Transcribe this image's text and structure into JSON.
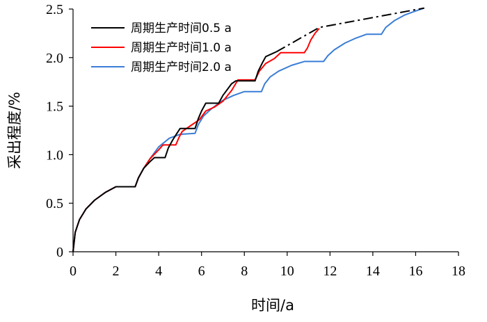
{
  "chart_data": {
    "type": "line",
    "xlabel": "时间/a",
    "ylabel": "采出程度/%",
    "xlim": [
      0,
      18
    ],
    "ylim": [
      0,
      2.5
    ],
    "x_ticks": [
      "0",
      "2",
      "4",
      "6",
      "8",
      "10",
      "12",
      "14",
      "16",
      "18"
    ],
    "y_ticks": [
      "0",
      "0.5",
      "1.0",
      "1.5",
      "2.0",
      "2.5"
    ],
    "grid": false,
    "legend_position": "top-left",
    "series": [
      {
        "name": "周期生产时间0.5 a",
        "color": "#000000",
        "points": [
          [
            0,
            0
          ],
          [
            0.1,
            0.2
          ],
          [
            0.3,
            0.33
          ],
          [
            0.6,
            0.44
          ],
          [
            1,
            0.53
          ],
          [
            1.5,
            0.61
          ],
          [
            2,
            0.67
          ],
          [
            2.9,
            0.67
          ],
          [
            3.05,
            0.76
          ],
          [
            3.3,
            0.86
          ],
          [
            3.6,
            0.93
          ],
          [
            3.8,
            0.97
          ],
          [
            4.3,
            0.97
          ],
          [
            4.45,
            1.07
          ],
          [
            4.65,
            1.15
          ],
          [
            4.85,
            1.22
          ],
          [
            5.0,
            1.27
          ],
          [
            5.7,
            1.27
          ],
          [
            5.85,
            1.37
          ],
          [
            6.0,
            1.45
          ],
          [
            6.2,
            1.53
          ],
          [
            6.8,
            1.53
          ],
          [
            7.0,
            1.61
          ],
          [
            7.2,
            1.67
          ],
          [
            7.4,
            1.73
          ],
          [
            7.6,
            1.76
          ],
          [
            8.5,
            1.76
          ],
          [
            8.65,
            1.86
          ],
          [
            8.85,
            1.95
          ],
          [
            9.0,
            2.01
          ],
          [
            9.3,
            2.04
          ],
          [
            9.5,
            2.06
          ]
        ],
        "dashed_points": [
          [
            9.5,
            2.06
          ],
          [
            11.5,
            2.31
          ],
          [
            16.4,
            2.51
          ]
        ]
      },
      {
        "name": "周期生产时间1.0 a",
        "color": "#ff0000",
        "points": [
          [
            0,
            0
          ],
          [
            0.1,
            0.2
          ],
          [
            0.3,
            0.33
          ],
          [
            0.6,
            0.44
          ],
          [
            1,
            0.53
          ],
          [
            1.5,
            0.61
          ],
          [
            2,
            0.67
          ],
          [
            2.9,
            0.67
          ],
          [
            3.05,
            0.76
          ],
          [
            3.3,
            0.86
          ],
          [
            3.6,
            0.96
          ],
          [
            4.0,
            1.05
          ],
          [
            4.2,
            1.1
          ],
          [
            4.8,
            1.1
          ],
          [
            4.95,
            1.18
          ],
          [
            5.1,
            1.24
          ],
          [
            5.5,
            1.3
          ],
          [
            5.9,
            1.36
          ],
          [
            6.2,
            1.45
          ],
          [
            6.6,
            1.49
          ],
          [
            7.0,
            1.55
          ],
          [
            7.4,
            1.66
          ],
          [
            7.7,
            1.77
          ],
          [
            8.5,
            1.77
          ],
          [
            8.7,
            1.86
          ],
          [
            9.0,
            1.94
          ],
          [
            9.4,
            1.99
          ],
          [
            9.7,
            2.05
          ],
          [
            10.8,
            2.05
          ],
          [
            10.95,
            2.1
          ],
          [
            11.1,
            2.18
          ],
          [
            11.3,
            2.25
          ],
          [
            11.5,
            2.3
          ]
        ]
      },
      {
        "name": "周期生产时间2.0 a",
        "color": "#3a7dd6",
        "points": [
          [
            0,
            0
          ],
          [
            0.1,
            0.2
          ],
          [
            0.3,
            0.33
          ],
          [
            0.6,
            0.44
          ],
          [
            1,
            0.53
          ],
          [
            1.5,
            0.61
          ],
          [
            2,
            0.67
          ],
          [
            2.9,
            0.67
          ],
          [
            3.05,
            0.76
          ],
          [
            3.3,
            0.86
          ],
          [
            3.6,
            0.96
          ],
          [
            4.0,
            1.08
          ],
          [
            4.5,
            1.17
          ],
          [
            5.0,
            1.21
          ],
          [
            5.7,
            1.22
          ],
          [
            5.85,
            1.31
          ],
          [
            6.1,
            1.4
          ],
          [
            6.5,
            1.48
          ],
          [
            7.0,
            1.56
          ],
          [
            7.5,
            1.61
          ],
          [
            8.0,
            1.65
          ],
          [
            8.8,
            1.65
          ],
          [
            8.95,
            1.73
          ],
          [
            9.2,
            1.8
          ],
          [
            9.6,
            1.86
          ],
          [
            10.2,
            1.92
          ],
          [
            10.8,
            1.96
          ],
          [
            11.7,
            1.96
          ],
          [
            11.9,
            2.02
          ],
          [
            12.2,
            2.08
          ],
          [
            12.7,
            2.15
          ],
          [
            13.2,
            2.2
          ],
          [
            13.7,
            2.24
          ],
          [
            14.4,
            2.24
          ],
          [
            14.6,
            2.31
          ],
          [
            15.0,
            2.38
          ],
          [
            15.5,
            2.44
          ],
          [
            16.0,
            2.48
          ],
          [
            16.4,
            2.51
          ]
        ]
      }
    ]
  }
}
